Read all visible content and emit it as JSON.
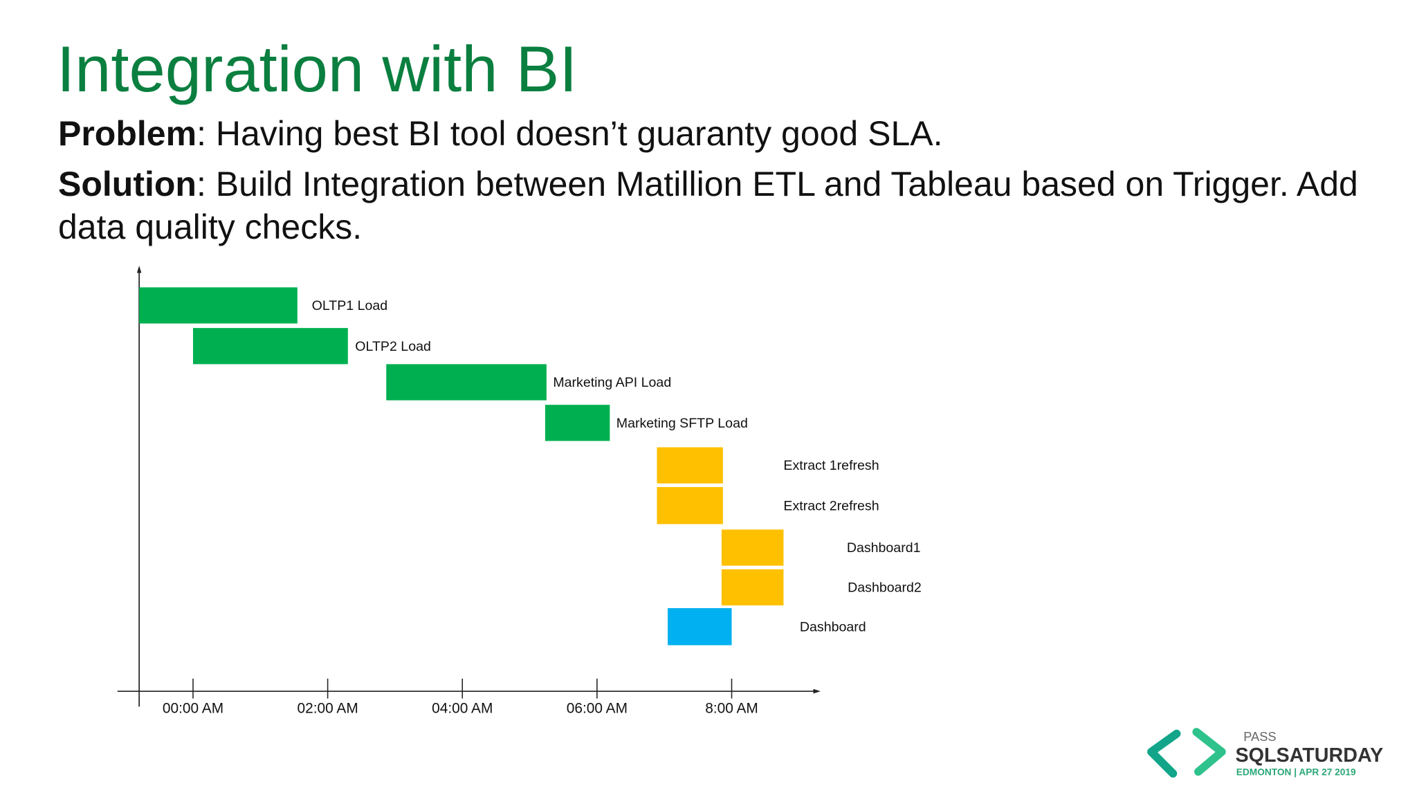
{
  "slide": {
    "title": "Integration with BI",
    "problem_label": "Problem",
    "problem_text": ": Having best BI tool doesn’t guaranty good SLA.",
    "solution_label": "Solution",
    "solution_text": ": Build Integration between Matillion ETL and Tableau based on Trigger. Add data quality checks."
  },
  "chart_data": {
    "type": "gantt",
    "tasks": [
      {
        "name": "OLTP1 Load",
        "start": -0.8,
        "end": 1.55,
        "color": "#00b050"
      },
      {
        "name": "OLTP2 Load",
        "start": 0,
        "end": 2.3,
        "color": "#00b050"
      },
      {
        "name": "Marketing API Load",
        "start": 2.87,
        "end": 5.25,
        "color": "#00b050"
      },
      {
        "name": "Marketing SFTP Load",
        "start": 5.23,
        "end": 6.19,
        "color": "#00b050"
      },
      {
        "name": "Extract 1refresh",
        "start": 6.89,
        "end": 7.87,
        "color": "#ffc000"
      },
      {
        "name": "Extract 2refresh",
        "start": 6.89,
        "end": 7.87,
        "color": "#ffc000"
      },
      {
        "name": "Dashboard1",
        "start": 7.85,
        "end": 8.77,
        "color": "#ffc000"
      },
      {
        "name": "Dashboard2",
        "start": 7.85,
        "end": 8.77,
        "color": "#ffc000"
      },
      {
        "name": "Dashboard",
        "start": 7.05,
        "end": 8.0,
        "color": "#00b0f0"
      }
    ],
    "xlim": [
      -0.8,
      9.3
    ],
    "xticks": [
      {
        "value": 0,
        "label": "00:00 AM"
      },
      {
        "value": 2,
        "label": "02:00 AM"
      },
      {
        "value": 4,
        "label": "04:00 AM"
      },
      {
        "value": 6,
        "label": "06:00 AM"
      },
      {
        "value": 8,
        "label": "8:00 AM"
      }
    ]
  },
  "logo": {
    "pass": "PASS",
    "name": "SQLSATURDAY",
    "event": "EDMONTON | APR 27 2019"
  }
}
